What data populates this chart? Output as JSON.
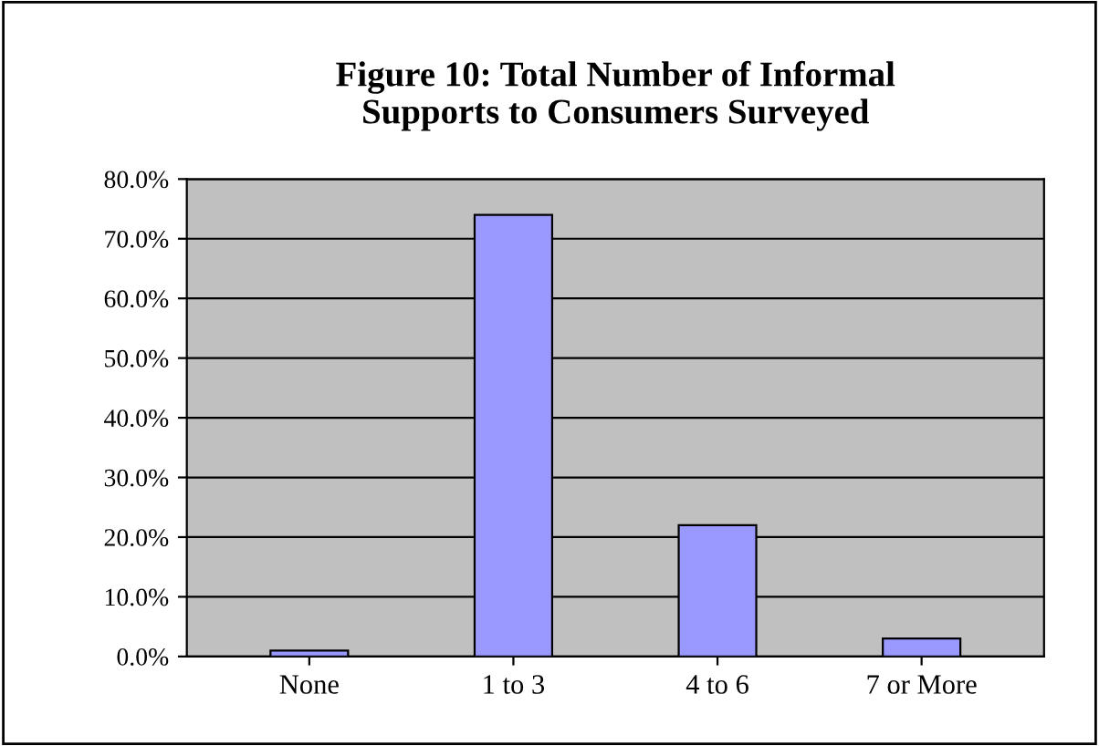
{
  "chart_data": {
    "type": "bar",
    "title": "Figure 10: Total Number of Informal\nSupports to Consumers Surveyed",
    "categories": [
      "None",
      "1 to 3",
      "4 to 6",
      "7 or More"
    ],
    "values": [
      1,
      74,
      22,
      3
    ],
    "color": "#9999ff",
    "ylim": [
      0,
      80
    ],
    "yticks": [
      {
        "value": 0,
        "label": "0.0%"
      },
      {
        "value": 10,
        "label": "10.0%"
      },
      {
        "value": 20,
        "label": "20.0%"
      },
      {
        "value": 30,
        "label": "30.0%"
      },
      {
        "value": 40,
        "label": "40.0%"
      },
      {
        "value": 50,
        "label": "50.0%"
      },
      {
        "value": 60,
        "label": "60.0%"
      },
      {
        "value": 70,
        "label": "70.0%"
      },
      {
        "value": 80,
        "label": "80.0%"
      }
    ],
    "grid": "y"
  }
}
